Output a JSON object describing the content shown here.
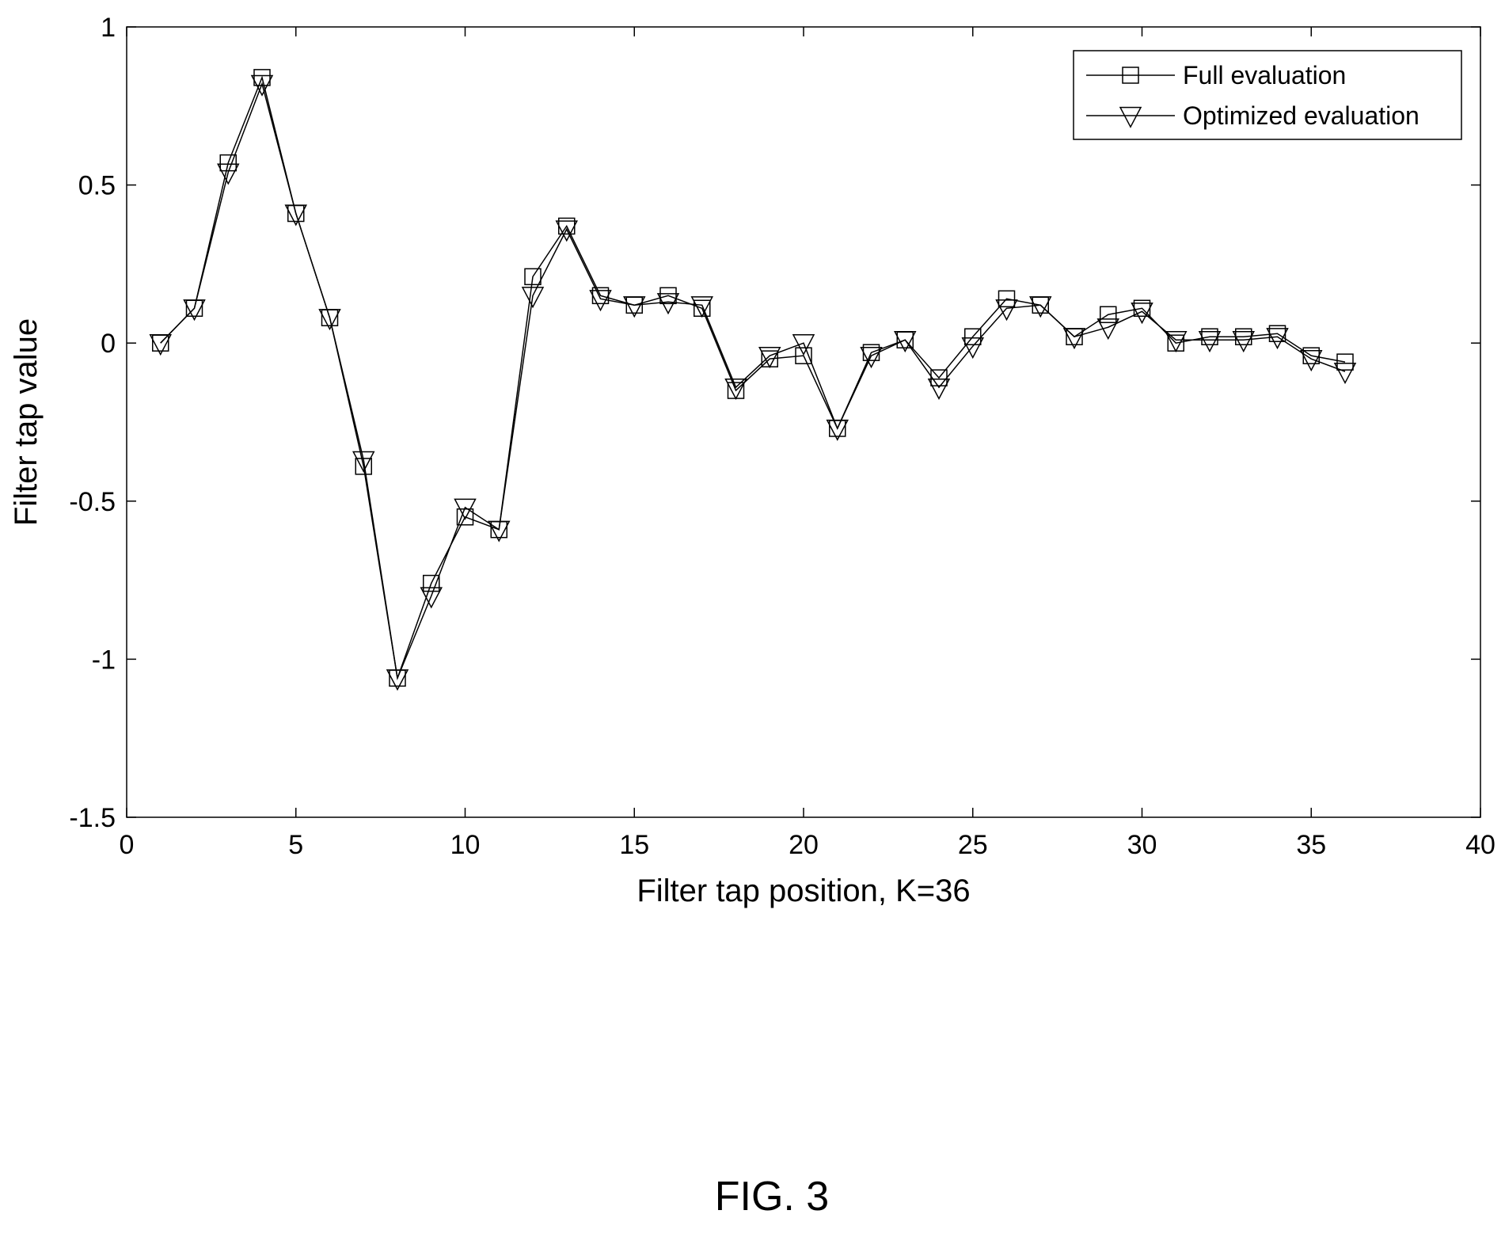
{
  "chart_data": {
    "type": "line",
    "xlabel": "Filter tap position, K=36",
    "ylabel": "Filter tap value",
    "xlim": [
      0,
      40
    ],
    "ylim": [
      -1.5,
      1
    ],
    "xticks": [
      0,
      5,
      10,
      15,
      20,
      25,
      30,
      35,
      40
    ],
    "xtick_labels": [
      "0",
      "5",
      "10",
      "15",
      "20",
      "25",
      "30",
      "35",
      "40"
    ],
    "yticks": [
      1,
      0.5,
      0,
      -0.5,
      -1,
      -1.5
    ],
    "ytick_labels": [
      "1",
      "0.5",
      "0",
      "-0.5",
      "-1",
      "-1.5"
    ],
    "grid": false,
    "legend_position": "top-right",
    "x": [
      1,
      2,
      3,
      4,
      5,
      6,
      7,
      8,
      9,
      10,
      11,
      12,
      13,
      14,
      15,
      16,
      17,
      18,
      19,
      20,
      21,
      22,
      23,
      24,
      25,
      26,
      27,
      28,
      29,
      30,
      31,
      32,
      33,
      34,
      35,
      36
    ],
    "series": [
      {
        "name": "Full evaluation",
        "marker": "square",
        "values": [
          0.0,
          0.11,
          0.57,
          0.84,
          0.41,
          0.08,
          -0.39,
          -1.06,
          -0.76,
          -0.55,
          -0.59,
          0.21,
          0.37,
          0.15,
          0.12,
          0.15,
          0.11,
          -0.15,
          -0.05,
          -0.04,
          -0.27,
          -0.03,
          0.01,
          -0.11,
          0.02,
          0.14,
          0.12,
          0.02,
          0.09,
          0.11,
          0.0,
          0.02,
          0.02,
          0.03,
          -0.04,
          -0.06
        ]
      },
      {
        "name": "Optimized evaluation",
        "marker": "triangle-down",
        "values": [
          0.0,
          0.11,
          0.54,
          0.82,
          0.41,
          0.08,
          -0.37,
          -1.06,
          -0.8,
          -0.52,
          -0.59,
          0.15,
          0.36,
          0.14,
          0.12,
          0.13,
          0.12,
          -0.14,
          -0.04,
          0.0,
          -0.27,
          -0.04,
          0.01,
          -0.14,
          -0.01,
          0.11,
          0.12,
          0.02,
          0.05,
          0.1,
          0.01,
          0.01,
          0.01,
          0.02,
          -0.05,
          -0.09
        ]
      }
    ]
  },
  "caption": "FIG. 3"
}
